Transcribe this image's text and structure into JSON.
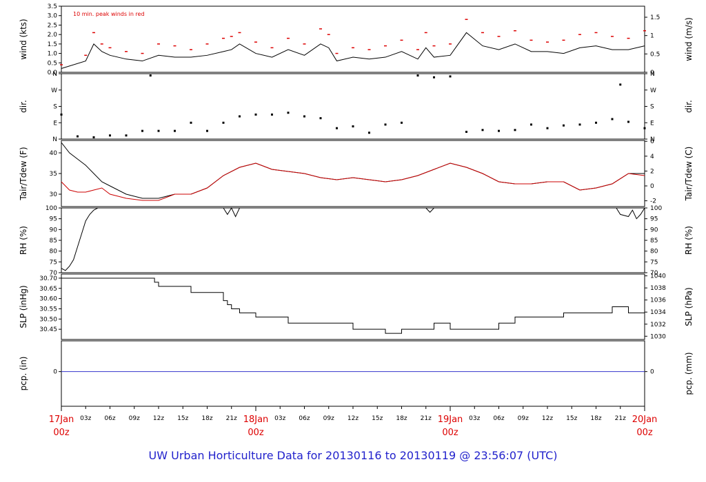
{
  "title": "UW Urban Horticulture Data for 20130116  to  20130119 @ 23:56:07  (UTC)",
  "colors": {
    "trace": "#000000",
    "peak": "#dd0000",
    "dew": "#cc0000",
    "pcp": "#3333cc",
    "title": "#2222cc",
    "date": "#dd0000"
  },
  "chart_data": [
    {
      "type": "line",
      "panel": "wind",
      "ylabel_left": "wind (kts)",
      "ylabel_right": "wind (m/s)",
      "annotation": "10 min. peak winds in red",
      "ylim": [
        0,
        3.5
      ],
      "yticks_left": [
        "0.0",
        "0.5",
        "1.0",
        "1.5",
        "2.0",
        "2.5",
        "3.0",
        "3.5"
      ],
      "yticks_right": [
        "0",
        "0.5",
        "1",
        "1.5"
      ],
      "x_hours": [
        0,
        3,
        4,
        5,
        6,
        8,
        10,
        12,
        14,
        16,
        18,
        20,
        21,
        22,
        24,
        26,
        28,
        30,
        32,
        33,
        34,
        36,
        38,
        40,
        42,
        44,
        45,
        46,
        48,
        50,
        52,
        54,
        56,
        58,
        60,
        62,
        64,
        66,
        68,
        70,
        72
      ],
      "series": [
        {
          "values": [
            0.2,
            0.6,
            1.5,
            1.1,
            0.9,
            0.7,
            0.6,
            0.9,
            0.8,
            0.8,
            0.9,
            1.1,
            1.2,
            1.5,
            1.0,
            0.8,
            1.2,
            0.9,
            1.5,
            1.3,
            0.6,
            0.8,
            0.7,
            0.8,
            1.1,
            0.7,
            1.3,
            0.8,
            0.9,
            2.1,
            1.4,
            1.2,
            1.5,
            1.1,
            1.1,
            1.0,
            1.3,
            1.4,
            1.2,
            1.2,
            1.4
          ]
        },
        {
          "values": [
            0.4,
            0.9,
            2.1,
            1.5,
            1.3,
            1.1,
            1.0,
            1.5,
            1.4,
            1.2,
            1.5,
            1.8,
            1.9,
            2.1,
            1.6,
            1.3,
            1.8,
            1.5,
            2.3,
            2.0,
            1.0,
            1.3,
            1.2,
            1.4,
            1.7,
            1.2,
            2.1,
            1.4,
            1.5,
            2.8,
            2.1,
            1.9,
            2.2,
            1.7,
            1.6,
            1.7,
            2.0,
            2.1,
            1.9,
            1.8,
            2.2
          ]
        }
      ]
    },
    {
      "type": "scatter",
      "panel": "dir",
      "ylabel_left": "dir.",
      "ylabel_right": "dir.",
      "yticks": [
        "N",
        "E",
        "S",
        "W",
        "N"
      ],
      "ylim": [
        0,
        360
      ],
      "x_hours": [
        0,
        2,
        4,
        6,
        8,
        10,
        11,
        12,
        14,
        16,
        18,
        20,
        22,
        24,
        26,
        28,
        30,
        32,
        34,
        36,
        38,
        40,
        42,
        44,
        46,
        48,
        50,
        52,
        54,
        56,
        58,
        60,
        62,
        64,
        66,
        68,
        69,
        70,
        72
      ],
      "values": [
        135,
        15,
        10,
        20,
        20,
        45,
        350,
        45,
        45,
        90,
        45,
        90,
        125,
        135,
        135,
        145,
        125,
        115,
        60,
        70,
        35,
        80,
        90,
        350,
        340,
        345,
        40,
        50,
        45,
        50,
        80,
        60,
        75,
        80,
        90,
        110,
        300,
        95,
        60
      ]
    },
    {
      "type": "line",
      "panel": "temp",
      "ylabel_left": "Tair/Tdew (F)",
      "ylabel_right": "Tair/Tdew (C)",
      "ylim": [
        27,
        43
      ],
      "yticks_left": [
        "30",
        "35",
        "40"
      ],
      "yticks_right": [
        "-2",
        "0",
        "2",
        "4",
        "6"
      ],
      "x_hours": [
        0,
        1,
        2,
        3,
        4,
        5,
        6,
        8,
        10,
        12,
        14,
        16,
        18,
        20,
        22,
        24,
        26,
        28,
        30,
        32,
        34,
        36,
        38,
        40,
        42,
        44,
        46,
        48,
        50,
        52,
        54,
        56,
        58,
        60,
        62,
        64,
        66,
        68,
        70,
        72
      ],
      "series": [
        {
          "name": "Tair",
          "values": [
            42.5,
            40,
            38.5,
            37,
            35,
            33,
            32,
            30,
            29,
            29,
            30,
            30,
            31.5,
            34.5,
            36.5,
            37.5,
            36,
            35.5,
            35,
            34,
            33.5,
            34,
            33.5,
            33,
            33.5,
            34.5,
            36,
            37.5,
            36.5,
            35,
            33,
            32.5,
            32.5,
            33,
            33,
            31,
            31.5,
            32.5,
            35,
            35
          ]
        },
        {
          "name": "Tdew",
          "values": [
            33,
            31,
            30.5,
            30.5,
            31,
            31.5,
            30,
            29,
            28.5,
            28.5,
            30,
            30,
            31.5,
            34.5,
            36.5,
            37.5,
            36,
            35.5,
            35,
            34,
            33.5,
            34,
            33.5,
            33,
            33.5,
            34.5,
            36,
            37.5,
            36.5,
            35,
            33,
            32.5,
            32.5,
            33,
            33,
            31,
            31.5,
            32.5,
            35,
            34.5
          ]
        }
      ]
    },
    {
      "type": "line",
      "panel": "rh",
      "ylabel_left": "RH (%)",
      "ylabel_right": "RH (%)",
      "ylim": [
        70,
        100
      ],
      "yticks": [
        "70",
        "75",
        "80",
        "85",
        "90",
        "95",
        "100"
      ],
      "x_hours": [
        0,
        0.5,
        1,
        1.5,
        2,
        2.5,
        3,
        3.5,
        4,
        4.5,
        20,
        20.5,
        21,
        21.5,
        22,
        45,
        45.5,
        46,
        68.5,
        69,
        70,
        70.5,
        71,
        71.5,
        72
      ],
      "values": [
        72,
        71,
        73,
        76,
        82,
        88,
        94,
        97,
        99,
        100,
        100,
        97,
        100,
        96,
        100,
        100,
        98,
        100,
        100,
        97,
        96,
        99,
        95,
        97,
        100
      ]
    },
    {
      "type": "line",
      "panel": "slp",
      "ylabel_left": "SLP (inHg)",
      "ylabel_right": "SLP (hPa)",
      "ylim": [
        30.4,
        30.72
      ],
      "yticks_left": [
        "30.45",
        "30.50",
        "30.55",
        "30.60",
        "30.65",
        "30.70"
      ],
      "yticks_right": [
        "1030",
        "1032",
        "1034",
        "1036",
        "1038",
        "1040"
      ],
      "x_hours": [
        0,
        10,
        11.5,
        12,
        13,
        16,
        19,
        20,
        20.5,
        21,
        22,
        24,
        26,
        28,
        30,
        32,
        34,
        36,
        38,
        40,
        42,
        44,
        46,
        48,
        50,
        52,
        54,
        56,
        58,
        60,
        62,
        64,
        66,
        68,
        70,
        72
      ],
      "values": [
        30.7,
        30.7,
        30.68,
        30.66,
        30.66,
        30.63,
        30.63,
        30.59,
        30.57,
        30.55,
        30.53,
        30.51,
        30.51,
        30.48,
        30.48,
        30.48,
        30.48,
        30.45,
        30.45,
        30.43,
        30.45,
        30.45,
        30.48,
        30.45,
        30.45,
        30.45,
        30.48,
        30.51,
        30.51,
        30.51,
        30.53,
        30.53,
        30.53,
        30.56,
        30.53,
        30.51
      ]
    },
    {
      "type": "line",
      "panel": "pcp",
      "ylabel_left": "pcp. (in)",
      "ylabel_right": "pcp. (mm)",
      "yticks_left": [
        "0"
      ],
      "yticks_right": [
        "0"
      ],
      "x_hours": [
        0,
        72
      ],
      "values": [
        0,
        0
      ]
    }
  ],
  "x_axis": {
    "hour_ticks": [
      "03z",
      "06z",
      "09z",
      "12z",
      "15z",
      "18z",
      "21z",
      "03z",
      "06z",
      "09z",
      "12z",
      "15z",
      "18z",
      "21z",
      "03z",
      "06z",
      "09z",
      "12z",
      "15z",
      "18z",
      "21z"
    ],
    "hour_positions": [
      3,
      6,
      9,
      12,
      15,
      18,
      21,
      27,
      30,
      33,
      36,
      39,
      42,
      45,
      51,
      54,
      57,
      60,
      63,
      66,
      69
    ],
    "day_ticks": [
      {
        "hour": 0,
        "date": "17Jan",
        "time": "00z"
      },
      {
        "hour": 24,
        "date": "18Jan",
        "time": "00z"
      },
      {
        "hour": 48,
        "date": "19Jan",
        "time": "00z"
      },
      {
        "hour": 72,
        "date": "20Jan",
        "time": "00z"
      }
    ]
  }
}
